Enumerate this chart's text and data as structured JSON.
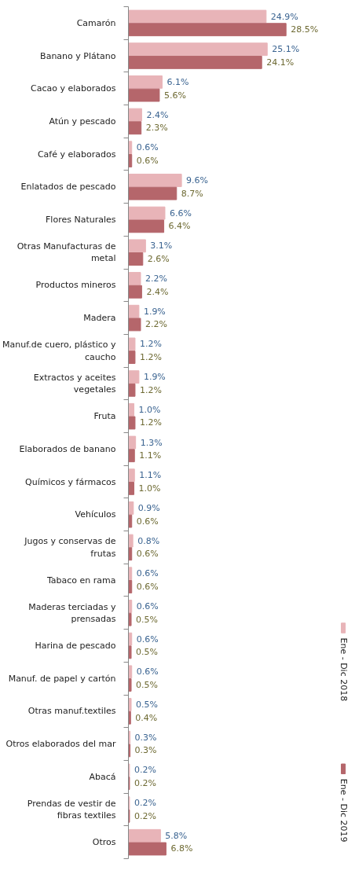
{
  "chart_data": {
    "type": "bar",
    "orientation": "horizontal",
    "legend": "right",
    "categories": [
      "Camarón",
      "Banano y Plátano",
      "Cacao y elaborados",
      "Atún y pescado",
      "Café y elaborados",
      "Enlatados de pescado",
      "Flores Naturales",
      "Otras Manufacturas de metal",
      "Productos mineros",
      "Madera",
      "Manuf.de cuero, plástico y caucho",
      "Extractos y aceites vegetales",
      "Fruta",
      "Elaborados de banano",
      "Químicos y fármacos",
      "Vehículos",
      "Jugos y conservas de frutas",
      "Tabaco en rama",
      "Maderas terciadas y prensadas",
      "Harina de pescado",
      "Manuf. de papel y cartón",
      "Otras manuf.textiles",
      "Otros elaborados del mar",
      "Abacá",
      "Prendas de vestir de fibras textiles",
      "Otros"
    ],
    "series": [
      {
        "name": "Ene - Dic 2018",
        "color": "#e8b4b8",
        "values": [
          24.9,
          25.1,
          6.1,
          2.4,
          0.6,
          9.6,
          6.6,
          3.1,
          2.2,
          1.9,
          1.2,
          1.9,
          1.0,
          1.3,
          1.1,
          0.9,
          0.8,
          0.6,
          0.6,
          0.6,
          0.6,
          0.5,
          0.3,
          0.2,
          0.2,
          5.8
        ],
        "value_labels": [
          "24.9%",
          "25.1%",
          "6.1%",
          "2.4%",
          "0.6%",
          "9.6%",
          "6.6%",
          "3.1%",
          "2.2%",
          "1.9%",
          "1.2%",
          "1.9%",
          "1.0%",
          "1.3%",
          "1.1%",
          "0.9%",
          "0.8%",
          "0.6%",
          "0.6%",
          "0.6%",
          "0.6%",
          "0.5%",
          "0.3%",
          "0.2%",
          "0.2%",
          "5.8%"
        ]
      },
      {
        "name": "Ene - Dic 2019",
        "color": "#b5666b",
        "values": [
          28.5,
          24.1,
          5.6,
          2.3,
          0.6,
          8.7,
          6.4,
          2.6,
          2.4,
          2.2,
          1.2,
          1.2,
          1.2,
          1.1,
          1.0,
          0.6,
          0.6,
          0.6,
          0.5,
          0.5,
          0.5,
          0.4,
          0.3,
          0.2,
          0.2,
          6.8
        ],
        "value_labels": [
          "28.5%",
          "24.1%",
          "5.6%",
          "2.3%",
          "0.6%",
          "8.7%",
          "6.4%",
          "2.6%",
          "2.4%",
          "2.2%",
          "1.2%",
          "1.2%",
          "1.2%",
          "1.1%",
          "1.0%",
          "0.6%",
          "0.6%",
          "0.6%",
          "0.5%",
          "0.5%",
          "0.5%",
          "0.4%",
          "0.3%",
          "0.2%",
          "0.2%",
          "6.8%"
        ]
      }
    ]
  }
}
